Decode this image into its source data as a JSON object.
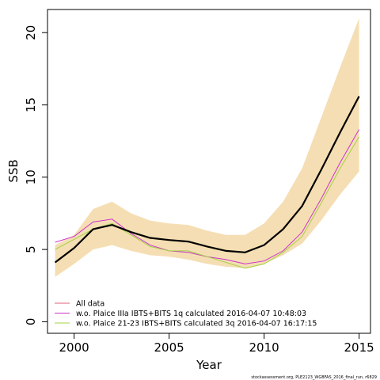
{
  "chart_data": {
    "type": "line",
    "xlabel": "Year",
    "ylabel": "SSB",
    "xlim": [
      1998.6,
      2015.6
    ],
    "ylim": [
      -0.8,
      21.6
    ],
    "x_ticks": [
      2000,
      2005,
      2010,
      2015
    ],
    "y_ticks": [
      0,
      5,
      10,
      15,
      20
    ],
    "x": [
      1999,
      2000,
      2001,
      2002,
      2003,
      2004,
      2005,
      2006,
      2007,
      2008,
      2009,
      2010,
      2011,
      2012,
      2013,
      2014,
      2015
    ],
    "band": {
      "lower": [
        3.1,
        4.0,
        5.0,
        5.3,
        4.9,
        4.6,
        4.5,
        4.3,
        4.0,
        3.8,
        3.7,
        4.0,
        4.6,
        5.4,
        7.0,
        8.8,
        10.4
      ],
      "upper": [
        5.3,
        6.0,
        7.8,
        8.3,
        7.5,
        7.0,
        6.8,
        6.7,
        6.3,
        6.0,
        6.0,
        6.8,
        8.3,
        10.6,
        14.1,
        17.6,
        21.0
      ],
      "color": "#f5deb3"
    },
    "series": [
      {
        "name": "All data",
        "values": [
          4.1,
          5.1,
          6.4,
          6.7,
          6.2,
          5.8,
          5.65,
          5.55,
          5.2,
          4.9,
          4.8,
          5.3,
          6.4,
          8.0,
          10.5,
          13.1,
          15.6
        ],
        "color": "#000000"
      },
      {
        "name": "w.o. Plaice IIIa IBTS+BITS 1q calculated 2016-04-07 10:48:03",
        "values": [
          5.5,
          5.9,
          6.9,
          7.1,
          6.1,
          5.3,
          4.9,
          4.8,
          4.5,
          4.3,
          4.0,
          4.2,
          4.9,
          6.2,
          8.5,
          11.0,
          13.3
        ],
        "color": "#cc33cc"
      },
      {
        "name": "w.o. Plaice 21-23 IBTS+BITS calculated 3q 2016-04-07 16:17:15",
        "values": [
          5.0,
          5.7,
          6.4,
          6.8,
          6.0,
          5.2,
          4.9,
          4.9,
          4.5,
          4.1,
          3.7,
          4.0,
          4.8,
          5.9,
          8.2,
          10.6,
          12.8
        ],
        "color": "#a3d147"
      }
    ],
    "legend_entries": [
      {
        "label": "All data",
        "color": "#e3607f"
      },
      {
        "label": "w.o. Plaice IIIa IBTS+BITS 1q calculated 2016-04-07 10:48:03",
        "color": "#cc33cc"
      },
      {
        "label": "w.o. Plaice 21-23 IBTS+BITS calculated 3q 2016-04-07 16:17:15",
        "color": "#a3d147"
      }
    ],
    "legend_position": "bottom-left",
    "grid": false
  },
  "footnote": "stockassessment.org, PLE2123_WGBFAS_2016_final_run, r6829"
}
